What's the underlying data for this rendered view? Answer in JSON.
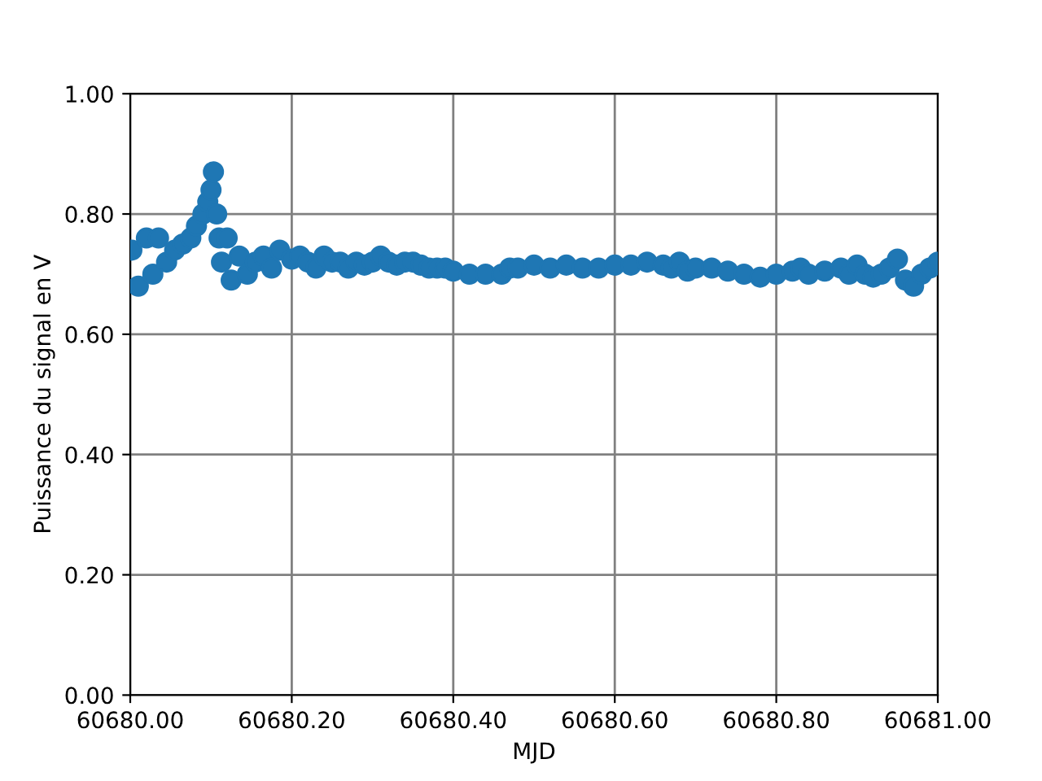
{
  "chart_data": {
    "type": "scatter",
    "xlabel": "MJD",
    "ylabel": "Puissance du signal en V",
    "x": [
      60680.002,
      60680.01,
      60680.02,
      60680.028,
      60680.035,
      60680.045,
      60680.055,
      60680.065,
      60680.075,
      60680.082,
      60680.09,
      60680.096,
      60680.1,
      60680.103,
      60680.107,
      60680.11,
      60680.113,
      60680.12,
      60680.125,
      60680.135,
      60680.145,
      60680.155,
      60680.165,
      60680.175,
      60680.185,
      60680.2,
      60680.21,
      60680.22,
      60680.23,
      60680.24,
      60680.25,
      60680.26,
      60680.27,
      60680.28,
      60680.29,
      60680.3,
      60680.31,
      60680.32,
      60680.33,
      60680.34,
      60680.35,
      60680.36,
      60680.37,
      60680.38,
      60680.39,
      60680.4,
      60680.42,
      60680.44,
      60680.46,
      60680.47,
      60680.48,
      60680.5,
      60680.52,
      60680.54,
      60680.56,
      60680.58,
      60680.6,
      60680.62,
      60680.64,
      60680.66,
      60680.67,
      60680.68,
      60680.69,
      60680.7,
      60680.72,
      60680.74,
      60680.76,
      60680.78,
      60680.8,
      60680.82,
      60680.83,
      60680.84,
      60680.86,
      60680.88,
      60680.89,
      60680.9,
      60680.91,
      60680.92,
      60680.93,
      60680.94,
      60680.95,
      60680.96,
      60680.97,
      60680.98,
      60680.99,
      60681.0
    ],
    "values": [
      0.74,
      0.68,
      0.76,
      0.7,
      0.76,
      0.72,
      0.74,
      0.75,
      0.76,
      0.78,
      0.8,
      0.82,
      0.84,
      0.87,
      0.8,
      0.76,
      0.72,
      0.76,
      0.69,
      0.73,
      0.7,
      0.72,
      0.73,
      0.71,
      0.74,
      0.725,
      0.73,
      0.72,
      0.71,
      0.73,
      0.72,
      0.72,
      0.71,
      0.72,
      0.715,
      0.72,
      0.73,
      0.72,
      0.715,
      0.72,
      0.72,
      0.715,
      0.71,
      0.71,
      0.71,
      0.705,
      0.7,
      0.7,
      0.7,
      0.71,
      0.71,
      0.715,
      0.71,
      0.715,
      0.71,
      0.71,
      0.715,
      0.715,
      0.72,
      0.715,
      0.71,
      0.72,
      0.705,
      0.71,
      0.71,
      0.705,
      0.7,
      0.695,
      0.7,
      0.705,
      0.71,
      0.7,
      0.705,
      0.71,
      0.7,
      0.715,
      0.7,
      0.695,
      0.7,
      0.71,
      0.725,
      0.69,
      0.68,
      0.7,
      0.71,
      0.72
    ],
    "color": "#1f77b4",
    "marker": "circle",
    "grid": true,
    "xlim": [
      60680.0,
      60681.0
    ],
    "xticks": [
      {
        "value": 60680.0,
        "label": "60680.00"
      },
      {
        "value": 60680.2,
        "label": "60680.20"
      },
      {
        "value": 60680.4,
        "label": "60680.40"
      },
      {
        "value": 60680.6,
        "label": "60680.60"
      },
      {
        "value": 60680.8,
        "label": "60680.80"
      },
      {
        "value": 60681.0,
        "label": "60681.00"
      }
    ],
    "ylim": [
      0,
      1
    ],
    "yticks": [
      {
        "value": 0,
        "label": "0.00"
      },
      {
        "value": 0.2,
        "label": "0.20"
      },
      {
        "value": 0.4,
        "label": "0.40"
      },
      {
        "value": 0.6,
        "label": "0.60"
      },
      {
        "value": 0.8,
        "label": "0.80"
      },
      {
        "value": 1,
        "label": "1.00"
      }
    ]
  }
}
